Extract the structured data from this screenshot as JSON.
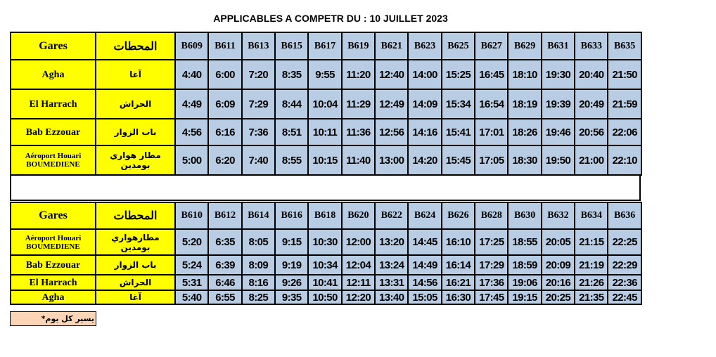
{
  "title": "APPLICABLES A COMPETR DU : 10 JUILLET 2023",
  "tables": [
    {
      "header": [
        "Gares",
        "المحطات",
        "B609",
        "B611",
        "B613",
        "B615",
        "B617",
        "B619",
        "B621",
        "B623",
        "B625",
        "B627",
        "B629",
        "B631",
        "B633",
        "B635"
      ],
      "rows": [
        [
          "Agha",
          "آغا",
          "4:40",
          "6:00",
          "7:20",
          "8:35",
          "9:55",
          "11:20",
          "12:40",
          "14:00",
          "15:25",
          "16:45",
          "18:10",
          "19:30",
          "20:40",
          "21:50"
        ],
        [
          "El Harrach",
          "الحراش",
          "4:49",
          "6:09",
          "7:29",
          "8:44",
          "10:04",
          "11:29",
          "12:49",
          "14:09",
          "15:34",
          "16:54",
          "18:19",
          "19:39",
          "20:49",
          "21:59"
        ],
        [
          "Bab Ezzouar",
          "باب الزوار",
          "4:56",
          "6:16",
          "7:36",
          "8:51",
          "10:11",
          "11:36",
          "12:56",
          "14:16",
          "15:41",
          "17:01",
          "18:26",
          "19:46",
          "20:56",
          "22:06"
        ],
        [
          "Aéroport Houari BOUMEDIENE",
          "مطار هواري بومدين",
          "5:00",
          "6:20",
          "7:40",
          "8:55",
          "10:15",
          "11:40",
          "13:00",
          "14:20",
          "15:45",
          "17:05",
          "18:30",
          "19:50",
          "21:00",
          "22:10"
        ]
      ]
    },
    {
      "header": [
        "Gares",
        "المحطات",
        "B610",
        "B612",
        "B614",
        "B616",
        "B618",
        "B620",
        "B622",
        "B624",
        "B626",
        "B628",
        "B630",
        "B632",
        "B634",
        "B636"
      ],
      "rows": [
        [
          "Aéroport Houari BOUMEDIENE",
          "مطارهواري بومدين",
          "5:20",
          "6:35",
          "8:05",
          "9:15",
          "10:30",
          "12:00",
          "13:20",
          "14:45",
          "16:10",
          "17:25",
          "18:55",
          "20:05",
          "21:15",
          "22:25"
        ],
        [
          "Bab Ezzouar",
          "باب الزوار",
          "5:24",
          "6:39",
          "8:09",
          "9:19",
          "10:34",
          "12:04",
          "13:24",
          "14:49",
          "16:14",
          "17:29",
          "18:59",
          "20:09",
          "21:19",
          "22:29"
        ],
        [
          "El Harrach",
          "الحراش",
          "5:31",
          "6:46",
          "8:16",
          "9:26",
          "10:41",
          "12:11",
          "13:31",
          "14:56",
          "16:21",
          "17:36",
          "19:06",
          "20:16",
          "21:26",
          "22:36"
        ],
        [
          "Agha",
          "آغا",
          "5:40",
          "6:55",
          "8:25",
          "9:35",
          "10:50",
          "12:20",
          "13:40",
          "15:05",
          "16:30",
          "17:45",
          "19:15",
          "20:25",
          "21:35",
          "22:45"
        ]
      ]
    }
  ],
  "note": "يسير كل يوم*"
}
